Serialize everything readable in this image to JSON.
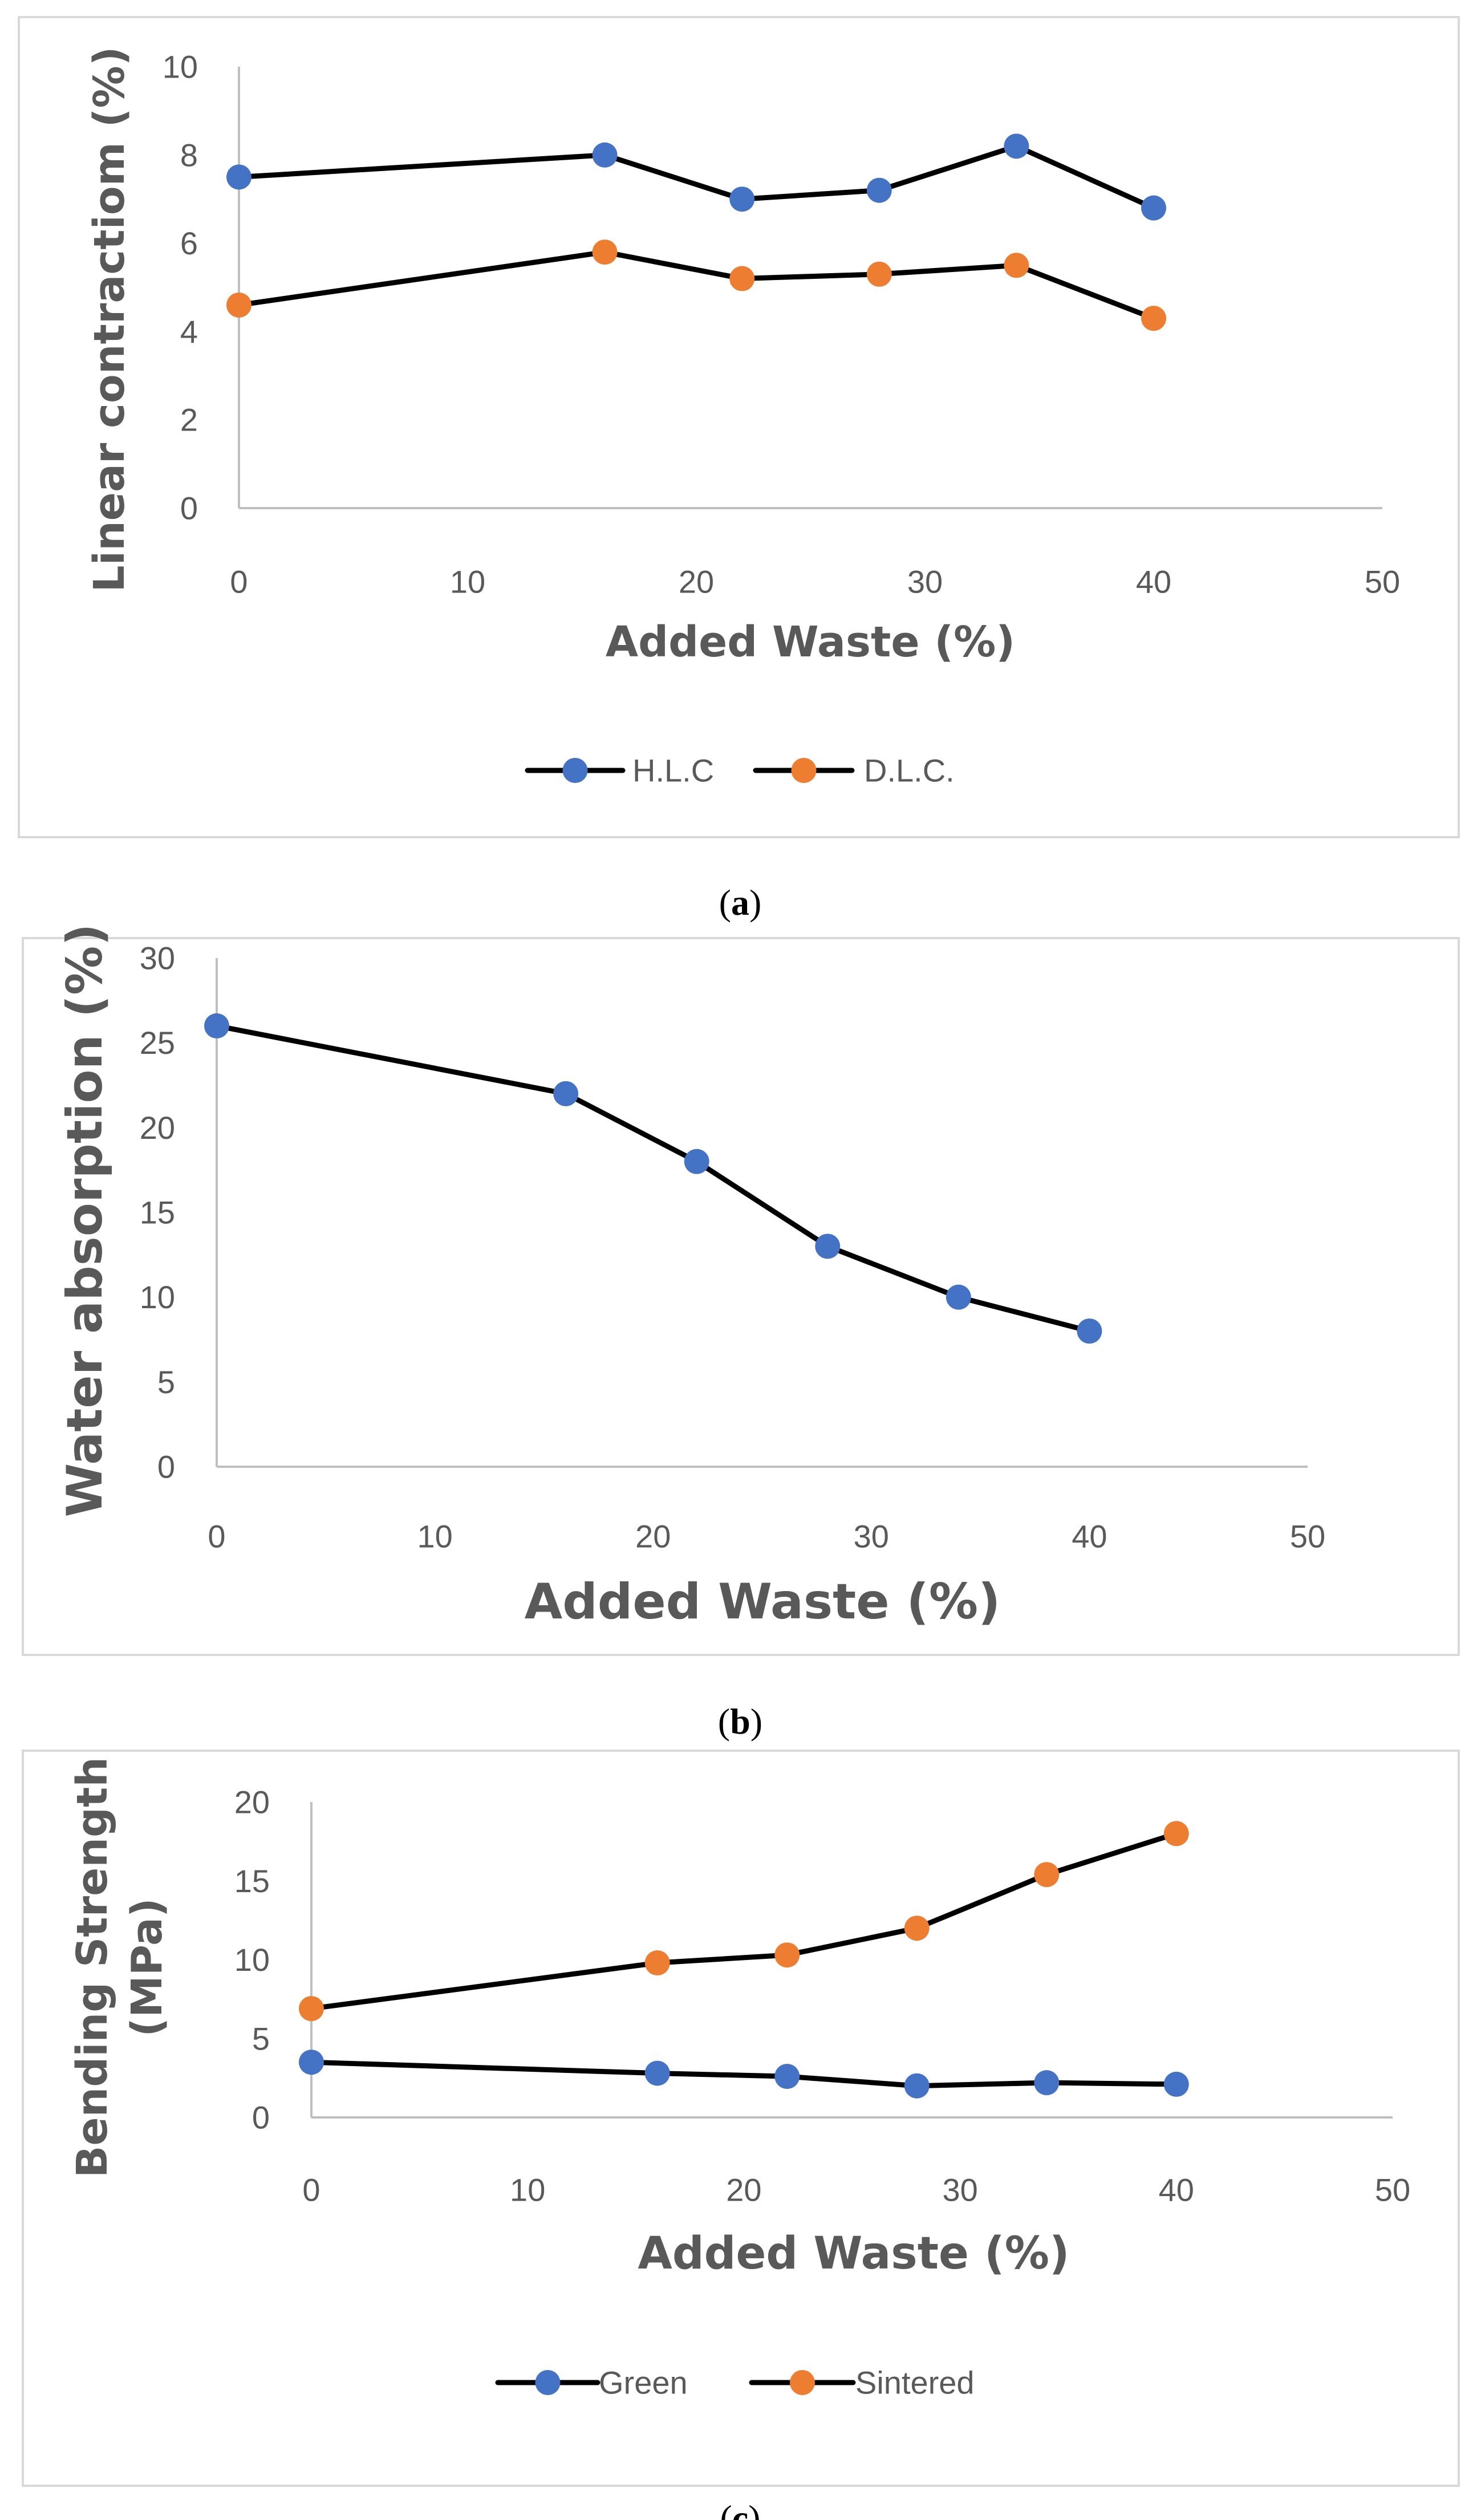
{
  "colors": {
    "blue": "#4472c4",
    "orange": "#ed7d31",
    "line": "#000000",
    "axis": "#bfbfbf",
    "text": "#595959",
    "frame": "#d9d9d9"
  },
  "chart_data": [
    {
      "type": "line",
      "panel": "a",
      "caption": {
        "open": "(",
        "letter": "a",
        "close": ")"
      },
      "xlabel": "Added Waste (%)",
      "ylabel": "Linear contractiom (%)",
      "xlim": [
        0,
        50
      ],
      "ylim": [
        0,
        10
      ],
      "xticks": [
        "0",
        "10",
        "20",
        "30",
        "40",
        "50"
      ],
      "yticks": [
        "0",
        "2",
        "4",
        "6",
        "8",
        "10"
      ],
      "x": [
        0,
        16,
        22,
        28,
        34,
        40
      ],
      "series": [
        {
          "name": "H.L.C",
          "color": "blue",
          "values": [
            7.5,
            8.0,
            7.0,
            7.2,
            8.2,
            6.8
          ]
        },
        {
          "name": "D.L.C.",
          "color": "orange",
          "values": [
            4.6,
            5.8,
            5.2,
            5.3,
            5.5,
            4.3
          ]
        }
      ],
      "legend": "bottom",
      "grid": false
    },
    {
      "type": "line",
      "panel": "b",
      "caption": {
        "open": "(",
        "letter": "b",
        "close": ")"
      },
      "xlabel": "Added Waste (%)",
      "ylabel": "Water absorption (%)",
      "xlim": [
        0,
        50
      ],
      "ylim": [
        0,
        30
      ],
      "xticks": [
        "0",
        "10",
        "20",
        "30",
        "40",
        "50"
      ],
      "yticks": [
        "0",
        "5",
        "10",
        "15",
        "20",
        "25",
        "30"
      ],
      "x": [
        0,
        16,
        22,
        28,
        34,
        40
      ],
      "series": [
        {
          "name": "Water absorption",
          "color": "blue",
          "values": [
            26,
            22,
            18,
            13,
            10,
            8
          ]
        }
      ],
      "legend": "none",
      "grid": false
    },
    {
      "type": "line",
      "panel": "c",
      "caption": {
        "open": "(",
        "letter": "c",
        "close": ")"
      },
      "xlabel": "Added Waste (%)",
      "ylabel": [
        "Bending Strength",
        "(MPa)"
      ],
      "xlim": [
        0,
        50
      ],
      "ylim": [
        0,
        20
      ],
      "xticks": [
        "0",
        "10",
        "20",
        "30",
        "40",
        "50"
      ],
      "yticks": [
        "0",
        "5",
        "10",
        "15",
        "20"
      ],
      "x": [
        0,
        16,
        22,
        28,
        34,
        40
      ],
      "series": [
        {
          "name": "Green",
          "color": "blue",
          "values": [
            3.5,
            2.8,
            2.6,
            2.0,
            2.2,
            2.1
          ]
        },
        {
          "name": "Sintered",
          "color": "orange",
          "values": [
            6.9,
            9.8,
            10.3,
            12.0,
            15.4,
            18.0
          ]
        }
      ],
      "legend": "bottom",
      "grid": false
    }
  ]
}
